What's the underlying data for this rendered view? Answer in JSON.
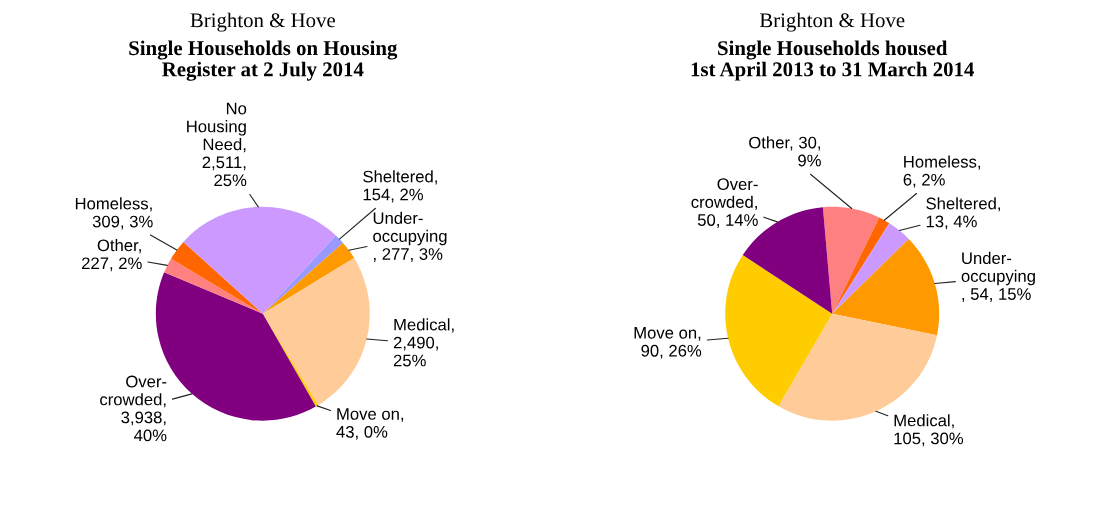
{
  "chart_data": [
    {
      "type": "pie",
      "subtitle": "Brighton & Hove",
      "title": "Single Households on Housing\nRegister at 2 July 2014",
      "categories": [
        "Sheltered",
        "Under-\noccupying",
        "Medical",
        "Move on",
        "Over-\ncrowded",
        "Other",
        "Homeless",
        "No\nHousing\nNeed"
      ],
      "values": [
        154,
        277,
        2490,
        43,
        3938,
        227,
        309,
        2511
      ],
      "value_labels": [
        ",\n154, 2%",
        "\n, 277, 3%",
        ",\n2,490,\n25%",
        ",\n43, 0%",
        ",\n3,938,\n40%",
        ",\n227, 2%",
        ",\n309, 3%",
        ",\n2,511,\n25%"
      ],
      "colors": [
        "#9999ff",
        "#ff9900",
        "#ffcc99",
        "#ffcc00",
        "#800080",
        "#ff8080",
        "#ff6600",
        "#cc99ff"
      ],
      "legend": false
    },
    {
      "type": "pie",
      "subtitle": "Brighton & Hove",
      "title": "Single Households housed\n1st April 2013 to 31 March 2014",
      "categories": [
        "Other",
        "Homeless",
        "Sheltered",
        "Under-\noccupying",
        "Medical",
        "Move on",
        "Over-\ncrowded"
      ],
      "values": [
        30,
        6,
        13,
        54,
        105,
        90,
        50
      ],
      "value_labels": [
        ", 30,\n9%",
        ",\n6, 2%",
        ",\n13, 4%",
        "\n, 54, 15%",
        ",\n105, 30%",
        ",\n90, 26%",
        ",\n50, 14%"
      ],
      "colors": [
        "#ff8080",
        "#ff6600",
        "#cc99ff",
        "#ff9900",
        "#ffcc99",
        "#ffcc00",
        "#800080"
      ],
      "legend": false
    }
  ]
}
